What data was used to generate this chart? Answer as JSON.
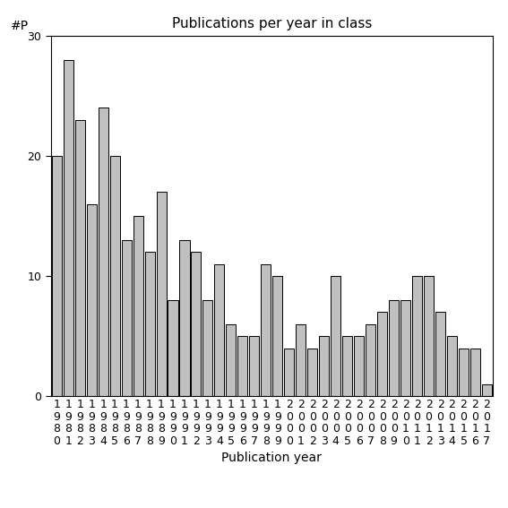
{
  "title": "Publications per year in class",
  "xlabel": "Publication year",
  "ylabel": "#P",
  "years": [
    "1980",
    "1981",
    "1982",
    "1983",
    "1984",
    "1985",
    "1986",
    "1987",
    "1988",
    "1989",
    "1990",
    "1991",
    "1992",
    "1993",
    "1994",
    "1995",
    "1996",
    "1997",
    "1998",
    "1999",
    "2000",
    "2001",
    "2002",
    "2003",
    "2004",
    "2005",
    "2006",
    "2007",
    "2008",
    "2009",
    "2010",
    "2011",
    "2012",
    "2013",
    "2014",
    "2015",
    "2016",
    "2017"
  ],
  "values": [
    20,
    28,
    23,
    16,
    24,
    20,
    13,
    15,
    12,
    17,
    8,
    13,
    12,
    8,
    11,
    6,
    5,
    5,
    11,
    10,
    4,
    6,
    4,
    5,
    10,
    5,
    5,
    6,
    7,
    8,
    8,
    10,
    10,
    7,
    5,
    4,
    4,
    1
  ],
  "bar_color": "#c0c0c0",
  "bar_edge_color": "#000000",
  "ylim": [
    0,
    30
  ],
  "yticks": [
    0,
    10,
    20,
    30
  ],
  "background_color": "#ffffff",
  "title_fontsize": 11,
  "label_fontsize": 10,
  "tick_fontsize": 9
}
